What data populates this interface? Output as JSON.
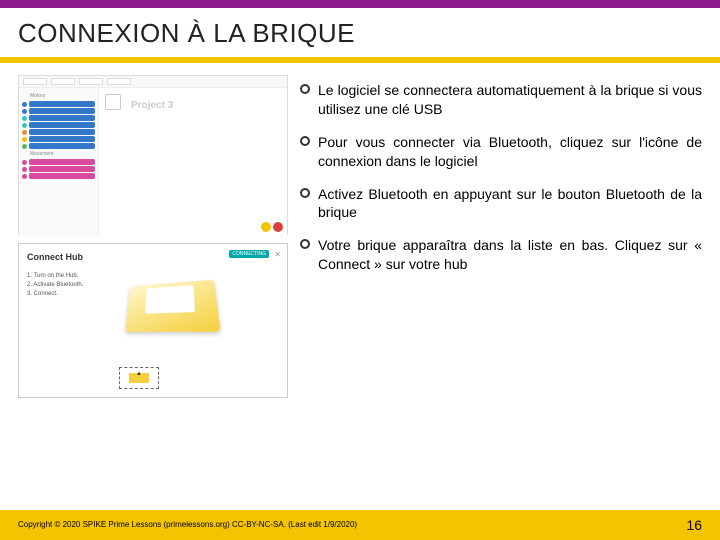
{
  "title": "CONNEXION À LA BRIQUE",
  "sc1": {
    "cat_motors": "Motors",
    "cat_movement": "Movement",
    "project": "Project 3",
    "palette": {
      "blue": "#3478c9",
      "pink": "#d84a9e",
      "cyan": "#35c4c4",
      "orange": "#e89030",
      "yellow": "#f5c400",
      "red": "#d84040",
      "green": "#5cb85c"
    }
  },
  "sc2": {
    "title": "Connect Hub",
    "conn_label": "CONNECTING",
    "step1": "1. Turn on the Hub.",
    "step2": "2. Activate Bluetooth.",
    "step3": "3. Connect."
  },
  "bullets": [
    "Le logiciel se connectera automatiquement à la brique si vous utilisez une clé USB",
    "Pour vous connecter via Bluetooth, cliquez sur l'icône de connexion dans le logiciel",
    "Activez Bluetooth en appuyant sur le bouton Bluetooth de la brique",
    "Votre brique apparaîtra dans la liste en bas. Cliquez sur « Connect » sur votre hub"
  ],
  "footer": {
    "copyright": "Copyright © 2020 SPIKE Prime Lessons (primelessons.org) CC-BY-NC-SA. (Last edit 1/9/2020)",
    "page": "16"
  }
}
